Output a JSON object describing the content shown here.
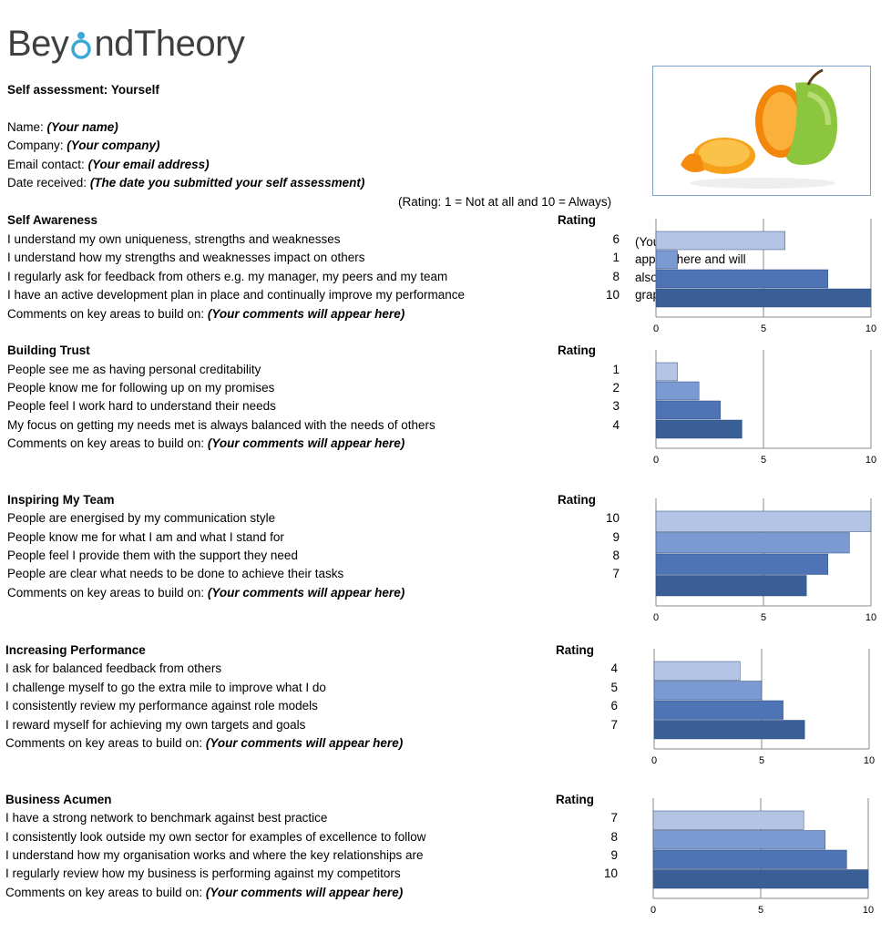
{
  "brand": {
    "logo_part1": "Bey",
    "logo_part2": "nd",
    "logo_part3": "Theory",
    "accent": "#3aa9d6"
  },
  "header": {
    "title": "Self assessment: Yourself",
    "fields": [
      {
        "label": "Name:",
        "value": "(Your name)"
      },
      {
        "label": "Company:",
        "value": "(Your company)"
      },
      {
        "label": "Email contact:",
        "value": "(Your email address)"
      },
      {
        "label": "Date received:",
        "value": "(The date you submitted your self assessment)"
      }
    ],
    "rating_scale": "(Rating: 1 = Not at all and 10 = Always)"
  },
  "image": {
    "icon": "apple-orange-photo"
  },
  "comments_note": "(Your comments will appear here and will also be shown as a graph)",
  "rating_header": "Rating",
  "comments_label": "Comments on key areas to build on:",
  "comments_placeholder": "(Your comments will appear here)",
  "bar_colors": [
    "#b4c4e4",
    "#7b9ad2",
    "#4e74b5",
    "#3a5e96"
  ],
  "sections": [
    {
      "title": "Self Awareness",
      "items": [
        {
          "text": "I understand my own uniqueness, strengths and weaknesses",
          "rating": "6"
        },
        {
          "text": "I understand how my strengths and weaknesses impact on others",
          "rating": "1"
        },
        {
          "text": "I regularly ask for feedback from others e.g. my manager, my peers and my team",
          "rating": "8"
        },
        {
          "text": "I have an active development plan in place and continually improve my performance",
          "rating": "10"
        }
      ]
    },
    {
      "title": "Building Trust",
      "items": [
        {
          "text": "People see me as having personal creditability",
          "rating": "1"
        },
        {
          "text": "People know me for following up on my promises",
          "rating": "2"
        },
        {
          "text": "People feel I work hard to understand their needs",
          "rating": "3"
        },
        {
          "text": "My focus on getting my needs met is always balanced with the needs of others",
          "rating": "4"
        }
      ]
    },
    {
      "title": "Inspiring My Team",
      "items": [
        {
          "text": "People are energised by my communication style",
          "rating": "10"
        },
        {
          "text": "People know me for what I am and what I stand for",
          "rating": "9"
        },
        {
          "text": "People feel I provide them with the support they need",
          "rating": "8"
        },
        {
          "text": "People are clear what needs to be done to achieve their tasks",
          "rating": "7"
        }
      ]
    },
    {
      "title": "Increasing Performance",
      "items": [
        {
          "text": "I ask for balanced feedback from others",
          "rating": "4"
        },
        {
          "text": "I challenge myself to go the extra mile to improve what I do",
          "rating": "5"
        },
        {
          "text": "I consistently review my performance against role models",
          "rating": "6"
        },
        {
          "text": "I reward myself for achieving my own targets and goals",
          "rating": "7"
        }
      ]
    },
    {
      "title": "Business Acumen",
      "items": [
        {
          "text": "I have a strong network to benchmark against best practice",
          "rating": "7"
        },
        {
          "text": "I consistently look outside my own sector for examples of excellence to follow",
          "rating": "8"
        },
        {
          "text": "I understand how my organisation works and where the key relationships are",
          "rating": "9"
        },
        {
          "text": "I regularly review how my business is performing against my competitors",
          "rating": "10"
        }
      ]
    }
  ],
  "chart_data": [
    {
      "type": "bar",
      "orientation": "horizontal",
      "values": [
        6,
        1,
        8,
        10
      ],
      "xlim": [
        0,
        10
      ],
      "ticks": [
        "0",
        "5",
        "10"
      ],
      "grid": true
    },
    {
      "type": "bar",
      "orientation": "horizontal",
      "values": [
        1,
        2,
        3,
        4
      ],
      "xlim": [
        0,
        10
      ],
      "ticks": [
        "0",
        "5",
        "10"
      ],
      "grid": true
    },
    {
      "type": "bar",
      "orientation": "horizontal",
      "values": [
        10,
        9,
        8,
        7
      ],
      "xlim": [
        0,
        10
      ],
      "ticks": [
        "0",
        "5",
        "10"
      ],
      "grid": true
    },
    {
      "type": "bar",
      "orientation": "horizontal",
      "values": [
        4,
        5,
        6,
        7
      ],
      "xlim": [
        0,
        10
      ],
      "ticks": [
        "0",
        "5",
        "10"
      ],
      "grid": true
    },
    {
      "type": "bar",
      "orientation": "horizontal",
      "values": [
        7,
        8,
        9,
        10
      ],
      "xlim": [
        0,
        10
      ],
      "ticks": [
        "0",
        "5",
        "10"
      ],
      "grid": true
    }
  ]
}
